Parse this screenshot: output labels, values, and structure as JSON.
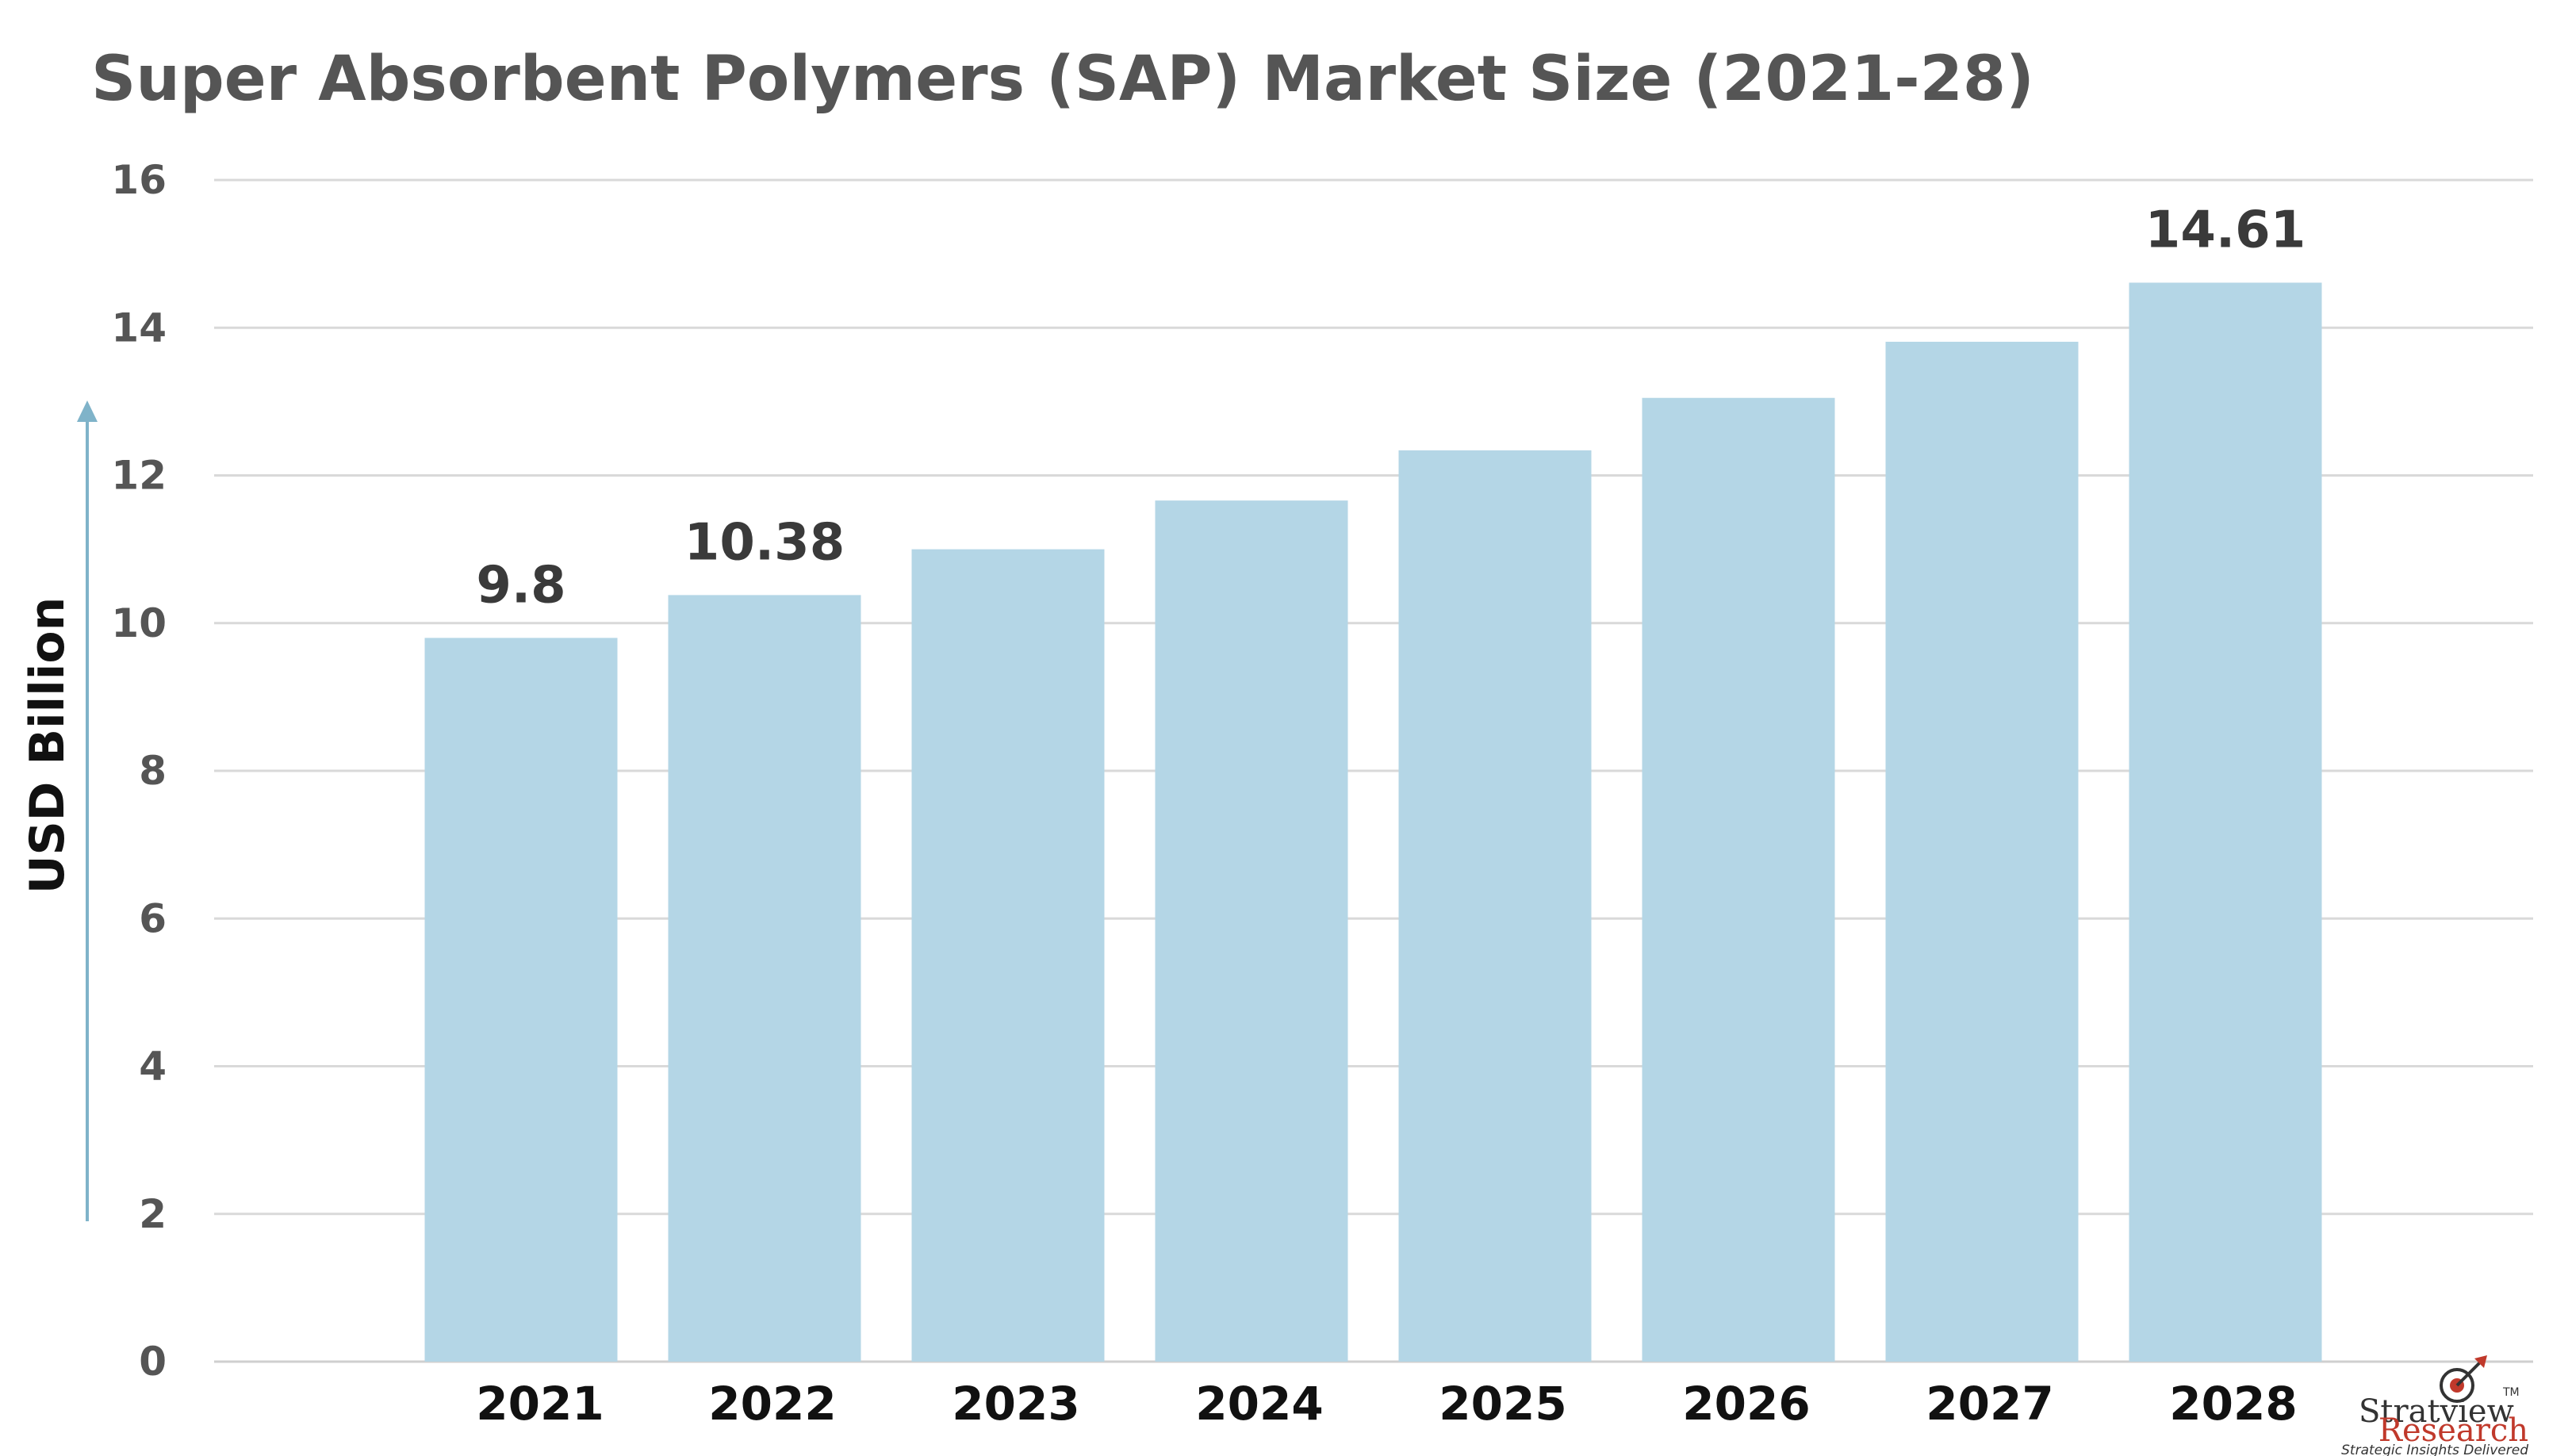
{
  "chart_data": {
    "type": "bar",
    "title": "Super Absorbent Polymers (SAP) Market Size (2021-28)",
    "xlabel": "",
    "ylabel": "USD Billion",
    "categories": [
      "2021",
      "2022",
      "2023",
      "2024",
      "2025",
      "2026",
      "2027",
      "2028"
    ],
    "values": [
      9.8,
      10.38,
      11.0,
      11.66,
      12.34,
      13.05,
      13.81,
      14.61
    ],
    "data_labels": [
      "9.8",
      "10.38",
      "",
      "",
      "",
      "",
      "",
      "14.61"
    ],
    "ylim": [
      0,
      16
    ],
    "yticks": [
      0,
      2,
      4,
      6,
      8,
      10,
      12,
      14,
      16
    ],
    "grid": true,
    "legend": "none",
    "colors": {
      "bar": "#b4d6e6",
      "grid": "#d9d9d9",
      "axis_arrow": "#7fb3c9",
      "title": "#555555",
      "tick_text": "#555555",
      "category_text": "#111111"
    }
  },
  "logo": {
    "name_line1": "Stratview",
    "name_line2": "Research",
    "tm": "TM",
    "tagline": "Strategic Insights Delivered"
  }
}
